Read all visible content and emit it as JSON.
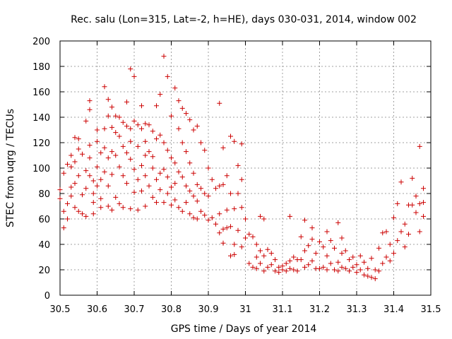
{
  "chart_data": {
    "type": "scatter",
    "title": "Rec. salu (Lon=315, Lat=-2, h=HE), days 030-031, 2014, window 002",
    "xlabel": "GPS time / Days of year 2014",
    "ylabel": "STEC from uqrg / TECUs",
    "xlim": [
      30.5,
      31.5
    ],
    "ylim": [
      0,
      200
    ],
    "xticks": [
      "30.5",
      "30.6",
      "30.7",
      "30.8",
      "30.9",
      "31",
      "31.1",
      "31.2",
      "31.3",
      "31.4",
      "31.5"
    ],
    "yticks": [
      "0",
      "20",
      "40",
      "60",
      "80",
      "100",
      "120",
      "140",
      "160",
      "180",
      "200"
    ],
    "grid": true,
    "marker": "+",
    "color": "#cc0000",
    "series": [
      {
        "points": [
          [
            30.5,
            76
          ],
          [
            30.5,
            83
          ],
          [
            30.51,
            96
          ],
          [
            30.51,
            66
          ],
          [
            30.51,
            53
          ],
          [
            30.52,
            72
          ],
          [
            30.52,
            60
          ],
          [
            30.52,
            103
          ],
          [
            30.53,
            110
          ],
          [
            30.53,
            101
          ],
          [
            30.53,
            85
          ],
          [
            30.53,
            78
          ],
          [
            30.54,
            124
          ],
          [
            30.54,
            105
          ],
          [
            30.54,
            88
          ],
          [
            30.54,
            69
          ],
          [
            30.55,
            115
          ],
          [
            30.55,
            94
          ],
          [
            30.55,
            66
          ],
          [
            30.55,
            123
          ],
          [
            30.56,
            79
          ],
          [
            30.56,
            64
          ],
          [
            30.56,
            111
          ],
          [
            30.57,
            137
          ],
          [
            30.57,
            98
          ],
          [
            30.57,
            84
          ],
          [
            30.57,
            62
          ],
          [
            30.58,
            153
          ],
          [
            30.58,
            146
          ],
          [
            30.58,
            118
          ],
          [
            30.58,
            108
          ],
          [
            30.58,
            94
          ],
          [
            30.59,
            90
          ],
          [
            30.59,
            80
          ],
          [
            30.59,
            73
          ],
          [
            30.59,
            64
          ],
          [
            30.6,
            130
          ],
          [
            30.6,
            121
          ],
          [
            30.6,
            101
          ],
          [
            30.6,
            86
          ],
          [
            30.61,
            112
          ],
          [
            30.61,
            91
          ],
          [
            30.61,
            76
          ],
          [
            30.61,
            69
          ],
          [
            30.62,
            164
          ],
          [
            30.62,
            131
          ],
          [
            30.62,
            116
          ],
          [
            30.62,
            97
          ],
          [
            30.63,
            154
          ],
          [
            30.63,
            141
          ],
          [
            30.63,
            108
          ],
          [
            30.63,
            86
          ],
          [
            30.63,
            70
          ],
          [
            30.64,
            148
          ],
          [
            30.64,
            132
          ],
          [
            30.64,
            113
          ],
          [
            30.64,
            95
          ],
          [
            30.64,
            67
          ],
          [
            30.65,
            141
          ],
          [
            30.65,
            128
          ],
          [
            30.65,
            110
          ],
          [
            30.65,
            77
          ],
          [
            30.66,
            140
          ],
          [
            30.66,
            125
          ],
          [
            30.66,
            101
          ],
          [
            30.66,
            72
          ],
          [
            30.67,
            136
          ],
          [
            30.67,
            117
          ],
          [
            30.67,
            94
          ],
          [
            30.67,
            69
          ],
          [
            30.68,
            152
          ],
          [
            30.68,
            133
          ],
          [
            30.68,
            112
          ],
          [
            30.68,
            88
          ],
          [
            30.69,
            178
          ],
          [
            30.69,
            131
          ],
          [
            30.69,
            121
          ],
          [
            30.69,
            107
          ],
          [
            30.69,
            68
          ],
          [
            30.7,
            172
          ],
          [
            30.7,
            137
          ],
          [
            30.7,
            99
          ],
          [
            30.7,
            81
          ],
          [
            30.71,
            134
          ],
          [
            30.71,
            117
          ],
          [
            30.71,
            91
          ],
          [
            30.71,
            67
          ],
          [
            30.72,
            149
          ],
          [
            30.72,
            131
          ],
          [
            30.72,
            102
          ],
          [
            30.72,
            82
          ],
          [
            30.73,
            135
          ],
          [
            30.73,
            121
          ],
          [
            30.73,
            110
          ],
          [
            30.73,
            94
          ],
          [
            30.73,
            70
          ],
          [
            30.74,
            134
          ],
          [
            30.74,
            113
          ],
          [
            30.74,
            86
          ],
          [
            30.75,
            129
          ],
          [
            30.75,
            109
          ],
          [
            30.75,
            100
          ],
          [
            30.75,
            77
          ],
          [
            30.76,
            149
          ],
          [
            30.76,
            123
          ],
          [
            30.76,
            91
          ],
          [
            30.76,
            73
          ],
          [
            30.77,
            158
          ],
          [
            30.77,
            126
          ],
          [
            30.77,
            96
          ],
          [
            30.77,
            83
          ],
          [
            30.78,
            188
          ],
          [
            30.78,
            120
          ],
          [
            30.78,
            99
          ],
          [
            30.78,
            73
          ],
          [
            30.79,
            172
          ],
          [
            30.79,
            114
          ],
          [
            30.79,
            93
          ],
          [
            30.79,
            80
          ],
          [
            30.8,
            141
          ],
          [
            30.8,
            108
          ],
          [
            30.8,
            85
          ],
          [
            30.8,
            71
          ],
          [
            30.81,
            163
          ],
          [
            30.81,
            104
          ],
          [
            30.81,
            88
          ],
          [
            30.81,
            75
          ],
          [
            30.82,
            153
          ],
          [
            30.82,
            131
          ],
          [
            30.82,
            97
          ],
          [
            30.82,
            69
          ],
          [
            30.83,
            147
          ],
          [
            30.83,
            120
          ],
          [
            30.83,
            93
          ],
          [
            30.83,
            66
          ],
          [
            30.84,
            143
          ],
          [
            30.84,
            113
          ],
          [
            30.84,
            86
          ],
          [
            30.84,
            73
          ],
          [
            30.85,
            138
          ],
          [
            30.85,
            104
          ],
          [
            30.85,
            82
          ],
          [
            30.85,
            64
          ],
          [
            30.86,
            130
          ],
          [
            30.86,
            96
          ],
          [
            30.86,
            78
          ],
          [
            30.86,
            61
          ],
          [
            30.87,
            133
          ],
          [
            30.87,
            87
          ],
          [
            30.87,
            74
          ],
          [
            30.87,
            60
          ],
          [
            30.88,
            120
          ],
          [
            30.88,
            84
          ],
          [
            30.88,
            66
          ],
          [
            30.89,
            114
          ],
          [
            30.89,
            80
          ],
          [
            30.89,
            63
          ],
          [
            30.9,
            100
          ],
          [
            30.9,
            78
          ],
          [
            30.9,
            59
          ],
          [
            30.91,
            91
          ],
          [
            30.91,
            61
          ],
          [
            30.92,
            84
          ],
          [
            30.92,
            56
          ],
          [
            30.93,
            151
          ],
          [
            30.93,
            86
          ],
          [
            30.93,
            64
          ],
          [
            30.93,
            49
          ],
          [
            30.94,
            116
          ],
          [
            30.94,
            87
          ],
          [
            30.94,
            52
          ],
          [
            30.94,
            41
          ],
          [
            30.95,
            94
          ],
          [
            30.95,
            67
          ],
          [
            30.95,
            53
          ],
          [
            30.96,
            125
          ],
          [
            30.96,
            80
          ],
          [
            30.96,
            54
          ],
          [
            30.96,
            31
          ],
          [
            30.97,
            121
          ],
          [
            30.97,
            68
          ],
          [
            30.97,
            40
          ],
          [
            30.97,
            32
          ],
          [
            30.98,
            102
          ],
          [
            30.98,
            80
          ],
          [
            30.98,
            51
          ],
          [
            30.99,
            119
          ],
          [
            30.99,
            91
          ],
          [
            30.99,
            69
          ],
          [
            30.99,
            38
          ],
          [
            31.0,
            60
          ],
          [
            31.0,
            45
          ],
          [
            31.01,
            48
          ],
          [
            31.01,
            25
          ],
          [
            31.02,
            46
          ],
          [
            31.02,
            22
          ],
          [
            31.03,
            40
          ],
          [
            31.03,
            30
          ],
          [
            31.03,
            21
          ],
          [
            31.04,
            62
          ],
          [
            31.04,
            35
          ],
          [
            31.04,
            25
          ],
          [
            31.05,
            60
          ],
          [
            31.05,
            31
          ],
          [
            31.05,
            19
          ],
          [
            31.06,
            36
          ],
          [
            31.06,
            22
          ],
          [
            31.07,
            33
          ],
          [
            31.07,
            24
          ],
          [
            31.08,
            28
          ],
          [
            31.08,
            19
          ],
          [
            31.09,
            22
          ],
          [
            31.09,
            18
          ],
          [
            31.1,
            23
          ],
          [
            31.1,
            20
          ],
          [
            31.11,
            25
          ],
          [
            31.11,
            19
          ],
          [
            31.12,
            62
          ],
          [
            31.12,
            27
          ],
          [
            31.12,
            21
          ],
          [
            31.13,
            30
          ],
          [
            31.13,
            20
          ],
          [
            31.14,
            28
          ],
          [
            31.14,
            19
          ],
          [
            31.15,
            46
          ],
          [
            31.15,
            28
          ],
          [
            31.16,
            59
          ],
          [
            31.16,
            35
          ],
          [
            31.16,
            22
          ],
          [
            31.17,
            39
          ],
          [
            31.17,
            24
          ],
          [
            31.18,
            53
          ],
          [
            31.18,
            44
          ],
          [
            31.18,
            27
          ],
          [
            31.19,
            33
          ],
          [
            31.19,
            21
          ],
          [
            31.2,
            42
          ],
          [
            31.2,
            21
          ],
          [
            31.21,
            38
          ],
          [
            31.21,
            22
          ],
          [
            31.22,
            50
          ],
          [
            31.22,
            31
          ],
          [
            31.22,
            20
          ],
          [
            31.23,
            43
          ],
          [
            31.23,
            25
          ],
          [
            31.24,
            37
          ],
          [
            31.24,
            20
          ],
          [
            31.25,
            57
          ],
          [
            31.25,
            26
          ],
          [
            31.25,
            19
          ],
          [
            31.26,
            45
          ],
          [
            31.26,
            33
          ],
          [
            31.26,
            22
          ],
          [
            31.27,
            35
          ],
          [
            31.27,
            21
          ],
          [
            31.28,
            28
          ],
          [
            31.28,
            19
          ],
          [
            31.29,
            30
          ],
          [
            31.29,
            22
          ],
          [
            31.3,
            24
          ],
          [
            31.3,
            18
          ],
          [
            31.31,
            31
          ],
          [
            31.31,
            20
          ],
          [
            31.32,
            26
          ],
          [
            31.32,
            16
          ],
          [
            31.33,
            21
          ],
          [
            31.33,
            15
          ],
          [
            31.34,
            29
          ],
          [
            31.34,
            14
          ],
          [
            31.35,
            20
          ],
          [
            31.35,
            13
          ],
          [
            31.36,
            37
          ],
          [
            31.36,
            19
          ],
          [
            31.37,
            49
          ],
          [
            31.37,
            25
          ],
          [
            31.38,
            50
          ],
          [
            31.38,
            30
          ],
          [
            31.39,
            40
          ],
          [
            31.39,
            27
          ],
          [
            31.4,
            61
          ],
          [
            31.4,
            33
          ],
          [
            31.41,
            72
          ],
          [
            31.41,
            43
          ],
          [
            31.42,
            89
          ],
          [
            31.42,
            50
          ],
          [
            31.43,
            56
          ],
          [
            31.43,
            38
          ],
          [
            31.44,
            71
          ],
          [
            31.44,
            48
          ],
          [
            31.45,
            92
          ],
          [
            31.45,
            71
          ],
          [
            31.46,
            78
          ],
          [
            31.46,
            65
          ],
          [
            31.47,
            117
          ],
          [
            31.47,
            72
          ],
          [
            31.47,
            50
          ],
          [
            31.48,
            84
          ],
          [
            31.48,
            73
          ],
          [
            31.48,
            62
          ]
        ]
      }
    ]
  }
}
